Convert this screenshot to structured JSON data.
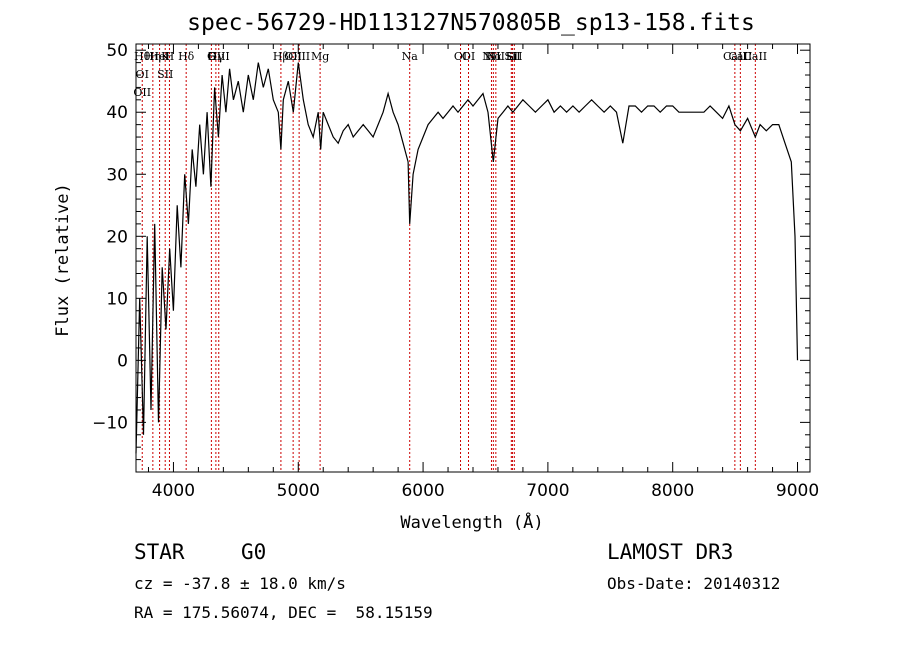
{
  "chart_data": {
    "type": "line",
    "title": "spec-56729-HD113127N570805B_sp13-158.fits",
    "xlabel": "Wavelength (Å)",
    "ylabel": "Flux (relative)",
    "xlim": [
      3700,
      9100
    ],
    "ylim": [
      -18,
      51
    ],
    "xticks": [
      4000,
      5000,
      6000,
      7000,
      8000,
      9000
    ],
    "yticks": [
      -10,
      0,
      10,
      20,
      30,
      40,
      50
    ],
    "series": [
      {
        "x": [
          3700,
          3730,
          3760,
          3790,
          3820,
          3850,
          3880,
          3910,
          3940,
          3970,
          4000,
          4030,
          4060,
          4090,
          4120,
          4150,
          4180,
          4210,
          4240,
          4270,
          4300,
          4330,
          4360,
          4390,
          4420,
          4450,
          4480,
          4520,
          4560,
          4600,
          4640,
          4680,
          4720,
          4760,
          4800,
          4840,
          4861,
          4880,
          4920,
          4960,
          5000,
          5040,
          5080,
          5120,
          5160,
          5180,
          5200,
          5240,
          5280,
          5320,
          5360,
          5400,
          5440,
          5480,
          5520,
          5560,
          5600,
          5640,
          5680,
          5720,
          5760,
          5800,
          5840,
          5880,
          5893,
          5920,
          5960,
          6000,
          6040,
          6080,
          6120,
          6160,
          6200,
          6240,
          6280,
          6320,
          6360,
          6400,
          6440,
          6480,
          6520,
          6563,
          6600,
          6640,
          6680,
          6720,
          6760,
          6800,
          6850,
          6900,
          6950,
          7000,
          7050,
          7100,
          7150,
          7200,
          7250,
          7300,
          7350,
          7400,
          7450,
          7500,
          7550,
          7600,
          7650,
          7700,
          7750,
          7800,
          7850,
          7900,
          7950,
          8000,
          8050,
          8100,
          8150,
          8200,
          8250,
          8300,
          8350,
          8400,
          8450,
          8498,
          8542,
          8600,
          8662,
          8700,
          8750,
          8800,
          8850,
          8900,
          8950,
          8980,
          9000
        ],
        "y": [
          -15,
          10,
          -12,
          20,
          -8,
          22,
          -10,
          15,
          5,
          18,
          8,
          25,
          15,
          30,
          22,
          34,
          28,
          38,
          30,
          40,
          28,
          44,
          36,
          46,
          40,
          47,
          42,
          45,
          40,
          46,
          42,
          48,
          44,
          47,
          42,
          40,
          34,
          42,
          45,
          40,
          48,
          42,
          38,
          36,
          40,
          34,
          40,
          38,
          36,
          35,
          37,
          38,
          36,
          37,
          38,
          37,
          36,
          38,
          40,
          43,
          40,
          38,
          35,
          32,
          22,
          30,
          34,
          36,
          38,
          39,
          40,
          39,
          40,
          41,
          40,
          41,
          42,
          41,
          42,
          43,
          40,
          32,
          39,
          40,
          41,
          40,
          41,
          42,
          41,
          40,
          41,
          42,
          40,
          41,
          40,
          41,
          40,
          41,
          42,
          41,
          40,
          41,
          40,
          35,
          41,
          41,
          40,
          41,
          41,
          40,
          41,
          41,
          40,
          40,
          40,
          40,
          40,
          41,
          40,
          39,
          41,
          38,
          37,
          39,
          36,
          38,
          37,
          38,
          38,
          35,
          32,
          20,
          0
        ]
      }
    ],
    "line_markers": [
      {
        "x": 3750,
        "labels": [
          "Hθ",
          "OI",
          "OII"
        ]
      },
      {
        "x": 3835,
        "labels": [
          "Hη"
        ]
      },
      {
        "x": 3889,
        "labels": [
          "HeI"
        ]
      },
      {
        "x": 3934,
        "labels": [
          "K",
          "SII"
        ]
      },
      {
        "x": 3968,
        "labels": [
          "H"
        ]
      },
      {
        "x": 4102,
        "labels": [
          "Hδ"
        ]
      },
      {
        "x": 4304,
        "labels": [
          "G"
        ]
      },
      {
        "x": 4340,
        "labels": [
          "Hγ"
        ]
      },
      {
        "x": 4363,
        "labels": [
          "OIII"
        ]
      },
      {
        "x": 4861,
        "labels": [
          "Hβ"
        ]
      },
      {
        "x": 4959,
        "labels": [
          "OII"
        ]
      },
      {
        "x": 5007,
        "labels": [
          "OIII"
        ]
      },
      {
        "x": 5175,
        "labels": [
          "Mg"
        ]
      },
      {
        "x": 5893,
        "labels": [
          "Na"
        ]
      },
      {
        "x": 6300,
        "labels": [
          "OI"
        ]
      },
      {
        "x": 6364,
        "labels": [
          "OI"
        ]
      },
      {
        "x": 6548,
        "labels": [
          "NII"
        ]
      },
      {
        "x": 6563,
        "labels": [
          "Hα"
        ]
      },
      {
        "x": 6583,
        "labels": [
          "NII"
        ]
      },
      {
        "x": 6707,
        "labels": [
          "Li"
        ]
      },
      {
        "x": 6716,
        "labels": [
          "SII"
        ]
      },
      {
        "x": 6731,
        "labels": [
          "SII"
        ]
      },
      {
        "x": 8498,
        "labels": [
          "CaII"
        ]
      },
      {
        "x": 8542,
        "labels": [
          "CaII"
        ]
      },
      {
        "x": 8662,
        "labels": [
          "CaII"
        ]
      }
    ]
  },
  "info": {
    "object_class": "STAR",
    "subclass": "G0",
    "survey": "LAMOST DR3",
    "redshift": "cz = -37.8 ± 18.0 km/s",
    "obs_date": "Obs-Date: 20140312",
    "coords": "RA = 175.56074, DEC =  58.15159"
  },
  "colors": {
    "spectrum": "#000000",
    "line_markers": "#cc0000"
  }
}
